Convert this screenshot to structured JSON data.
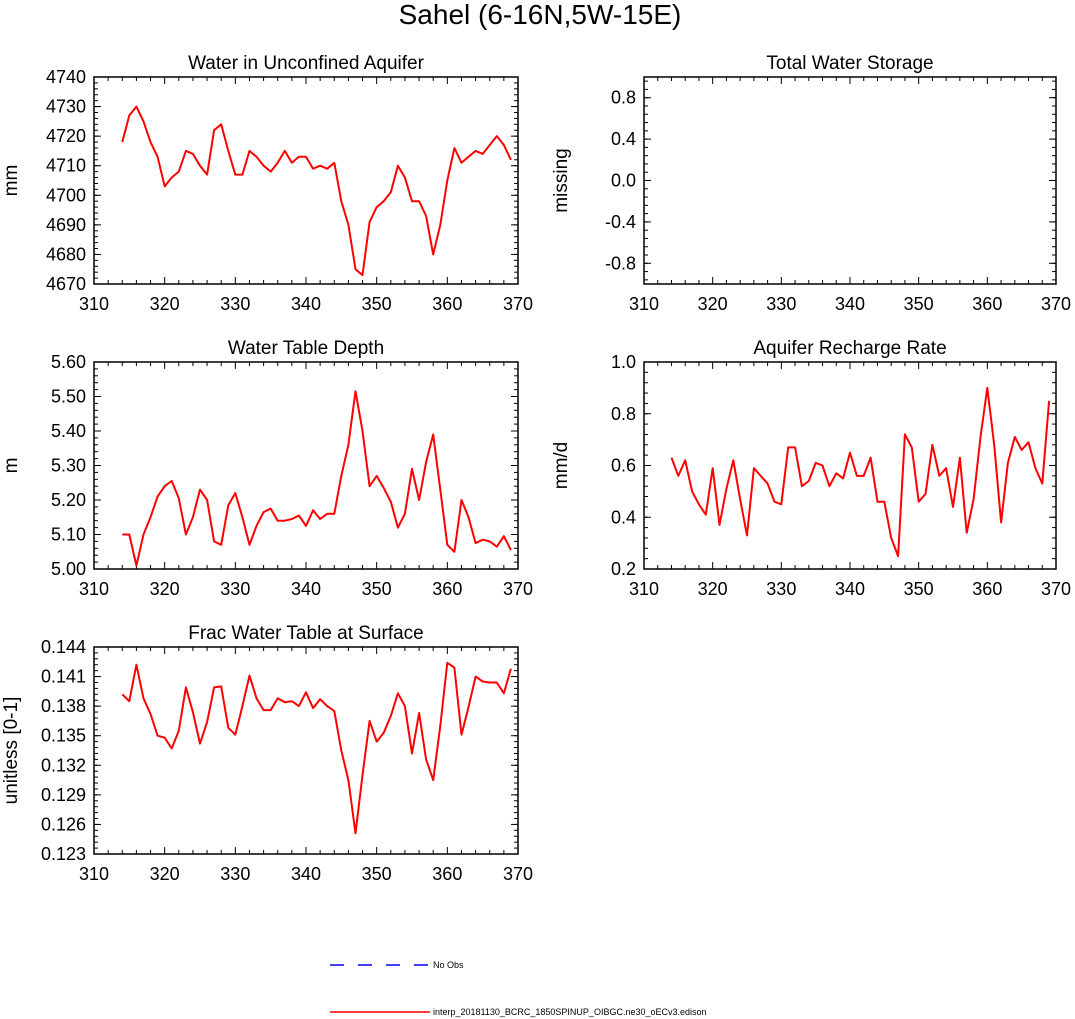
{
  "figure": {
    "title": "Sahel (6-16N,5W-15E)"
  },
  "legend": {
    "obs_label": "No Obs",
    "obs_color": "#0000ff",
    "model_label": "interp_20181130_BCRC_1850SPINUP_OIBGC.ne30_oECv3.edison",
    "model_color": "#ff0000"
  },
  "chart_data": [
    {
      "type": "line",
      "title": "Water in Unconfined Aquifer",
      "xlabel": "",
      "ylabel": "mm",
      "xlim": [
        310,
        370
      ],
      "ylim": [
        4670,
        4740
      ],
      "xticks": [
        310,
        320,
        330,
        340,
        350,
        360,
        370
      ],
      "yticks": [
        "4670",
        "4680",
        "4690",
        "4700",
        "4710",
        "4720",
        "4730",
        "4740"
      ],
      "series": [
        {
          "name": "interp_20181130_BCRC_1850SPINUP_OIBGC.ne30_oECv3.edison",
          "color": "#ff0000",
          "x": [
            314,
            315,
            316,
            317,
            318,
            319,
            320,
            321,
            322,
            323,
            324,
            325,
            326,
            327,
            328,
            329,
            330,
            331,
            332,
            333,
            334,
            335,
            336,
            337,
            338,
            339,
            340,
            341,
            342,
            343,
            344,
            345,
            346,
            347,
            348,
            349,
            350,
            351,
            352,
            353,
            354,
            355,
            356,
            357,
            358,
            359,
            360,
            361,
            362,
            363,
            364,
            365,
            366,
            367,
            368,
            369
          ],
          "values": [
            4718,
            4727,
            4730,
            4725,
            4718,
            4713,
            4703,
            4706,
            4708,
            4715,
            4714,
            4710,
            4707,
            4722,
            4724,
            4715,
            4707,
            4707,
            4715,
            4713,
            4710,
            4708,
            4711,
            4715,
            4711,
            4713,
            4713,
            4709,
            4710,
            4709,
            4711,
            4698,
            4690,
            4675,
            4673,
            4691,
            4696,
            4698,
            4701,
            4710,
            4706,
            4698,
            4698,
            4693,
            4680,
            4690,
            4705,
            4716,
            4711,
            4713,
            4715,
            4714,
            4717,
            4720,
            4717,
            4712
          ]
        }
      ]
    },
    {
      "type": "line",
      "title": "Total Water Storage",
      "xlabel": "",
      "ylabel": "missing",
      "xlim": [
        310,
        370
      ],
      "ylim": [
        -1,
        1
      ],
      "xticks": [
        310,
        320,
        330,
        340,
        350,
        360,
        370
      ],
      "yticks": [
        "-0.8",
        "-0.4",
        "0.0",
        "0.4",
        "0.8"
      ],
      "series": []
    },
    {
      "type": "line",
      "title": "Water Table Depth",
      "xlabel": "",
      "ylabel": "m",
      "xlim": [
        310,
        370
      ],
      "ylim": [
        5.0,
        5.6
      ],
      "xticks": [
        310,
        320,
        330,
        340,
        350,
        360,
        370
      ],
      "yticks": [
        "5.00",
        "5.10",
        "5.20",
        "5.30",
        "5.40",
        "5.50",
        "5.60"
      ],
      "series": [
        {
          "name": "interp_20181130_BCRC_1850SPINUP_OIBGC.ne30_oECv3.edison",
          "color": "#ff0000",
          "x": [
            314,
            315,
            316,
            317,
            318,
            319,
            320,
            321,
            322,
            323,
            324,
            325,
            326,
            327,
            328,
            329,
            330,
            331,
            332,
            333,
            334,
            335,
            336,
            337,
            338,
            339,
            340,
            341,
            342,
            343,
            344,
            345,
            346,
            347,
            348,
            349,
            350,
            351,
            352,
            353,
            354,
            355,
            356,
            357,
            358,
            359,
            360,
            361,
            362,
            363,
            364,
            365,
            366,
            367,
            368,
            369
          ],
          "values": [
            5.1,
            5.1,
            5.01,
            5.1,
            5.15,
            5.21,
            5.24,
            5.255,
            5.205,
            5.1,
            5.15,
            5.23,
            5.2,
            5.08,
            5.07,
            5.185,
            5.22,
            5.15,
            5.07,
            5.125,
            5.165,
            5.175,
            5.14,
            5.14,
            5.145,
            5.155,
            5.125,
            5.17,
            5.145,
            5.16,
            5.16,
            5.27,
            5.36,
            5.515,
            5.4,
            5.24,
            5.27,
            5.235,
            5.195,
            5.12,
            5.16,
            5.29,
            5.2,
            5.31,
            5.39,
            5.23,
            5.07,
            5.05,
            5.2,
            5.15,
            5.075,
            5.085,
            5.08,
            5.065,
            5.095,
            5.055
          ]
        }
      ]
    },
    {
      "type": "line",
      "title": "Aquifer Recharge Rate",
      "xlabel": "",
      "ylabel": "mm/d",
      "xlim": [
        310,
        370
      ],
      "ylim": [
        0.2,
        1.0
      ],
      "xticks": [
        310,
        320,
        330,
        340,
        350,
        360,
        370
      ],
      "yticks": [
        "0.2",
        "0.4",
        "0.6",
        "0.8",
        "1.0"
      ],
      "series": [
        {
          "name": "interp_20181130_BCRC_1850SPINUP_OIBGC.ne30_oECv3.edison",
          "color": "#ff0000",
          "x": [
            314,
            315,
            316,
            317,
            318,
            319,
            320,
            321,
            322,
            323,
            324,
            325,
            326,
            327,
            328,
            329,
            330,
            331,
            332,
            333,
            334,
            335,
            336,
            337,
            338,
            339,
            340,
            341,
            342,
            343,
            344,
            345,
            346,
            347,
            348,
            349,
            350,
            351,
            352,
            353,
            354,
            355,
            356,
            357,
            358,
            359,
            360,
            361,
            362,
            363,
            364,
            365,
            366,
            367,
            368,
            369
          ],
          "values": [
            0.63,
            0.56,
            0.62,
            0.5,
            0.45,
            0.41,
            0.59,
            0.37,
            0.51,
            0.62,
            0.47,
            0.33,
            0.59,
            0.56,
            0.53,
            0.46,
            0.45,
            0.67,
            0.67,
            0.52,
            0.54,
            0.61,
            0.6,
            0.52,
            0.57,
            0.55,
            0.65,
            0.56,
            0.56,
            0.63,
            0.46,
            0.46,
            0.32,
            0.25,
            0.72,
            0.67,
            0.46,
            0.49,
            0.68,
            0.56,
            0.59,
            0.44,
            0.63,
            0.34,
            0.47,
            0.71,
            0.9,
            0.68,
            0.38,
            0.61,
            0.71,
            0.66,
            0.69,
            0.59,
            0.53,
            0.85
          ]
        }
      ]
    },
    {
      "type": "line",
      "title": "Frac Water Table at Surface",
      "xlabel": "",
      "ylabel": "unitless [0-1]",
      "xlim": [
        310,
        370
      ],
      "ylim": [
        0.123,
        0.144
      ],
      "xticks": [
        310,
        320,
        330,
        340,
        350,
        360,
        370
      ],
      "yticks": [
        "0.123",
        "0.126",
        "0.129",
        "0.132",
        "0.135",
        "0.138",
        "0.141",
        "0.144"
      ],
      "series": [
        {
          "name": "interp_20181130_BCRC_1850SPINUP_OIBGC.ne30_oECv3.edison",
          "color": "#ff0000",
          "x": [
            314,
            315,
            316,
            317,
            318,
            319,
            320,
            321,
            322,
            323,
            324,
            325,
            326,
            327,
            328,
            329,
            330,
            331,
            332,
            333,
            334,
            335,
            336,
            337,
            338,
            339,
            340,
            341,
            342,
            343,
            344,
            345,
            346,
            347,
            348,
            349,
            350,
            351,
            352,
            353,
            354,
            355,
            356,
            357,
            358,
            359,
            360,
            361,
            362,
            363,
            364,
            365,
            366,
            367,
            368,
            369
          ],
          "values": [
            0.1392,
            0.1385,
            0.1422,
            0.1388,
            0.1372,
            0.135,
            0.1348,
            0.1337,
            0.1355,
            0.1399,
            0.1374,
            0.1342,
            0.1364,
            0.1399,
            0.14,
            0.1358,
            0.1351,
            0.138,
            0.1411,
            0.1388,
            0.1376,
            0.1376,
            0.1388,
            0.1384,
            0.1385,
            0.138,
            0.1394,
            0.1378,
            0.1387,
            0.138,
            0.1375,
            0.1335,
            0.1305,
            0.1251,
            0.131,
            0.1365,
            0.1344,
            0.1353,
            0.137,
            0.1393,
            0.138,
            0.1332,
            0.1373,
            0.1326,
            0.1305,
            0.136,
            0.1424,
            0.1419,
            0.1351,
            0.1379,
            0.141,
            0.1405,
            0.1404,
            0.1404,
            0.1393,
            0.1418
          ]
        }
      ]
    }
  ]
}
